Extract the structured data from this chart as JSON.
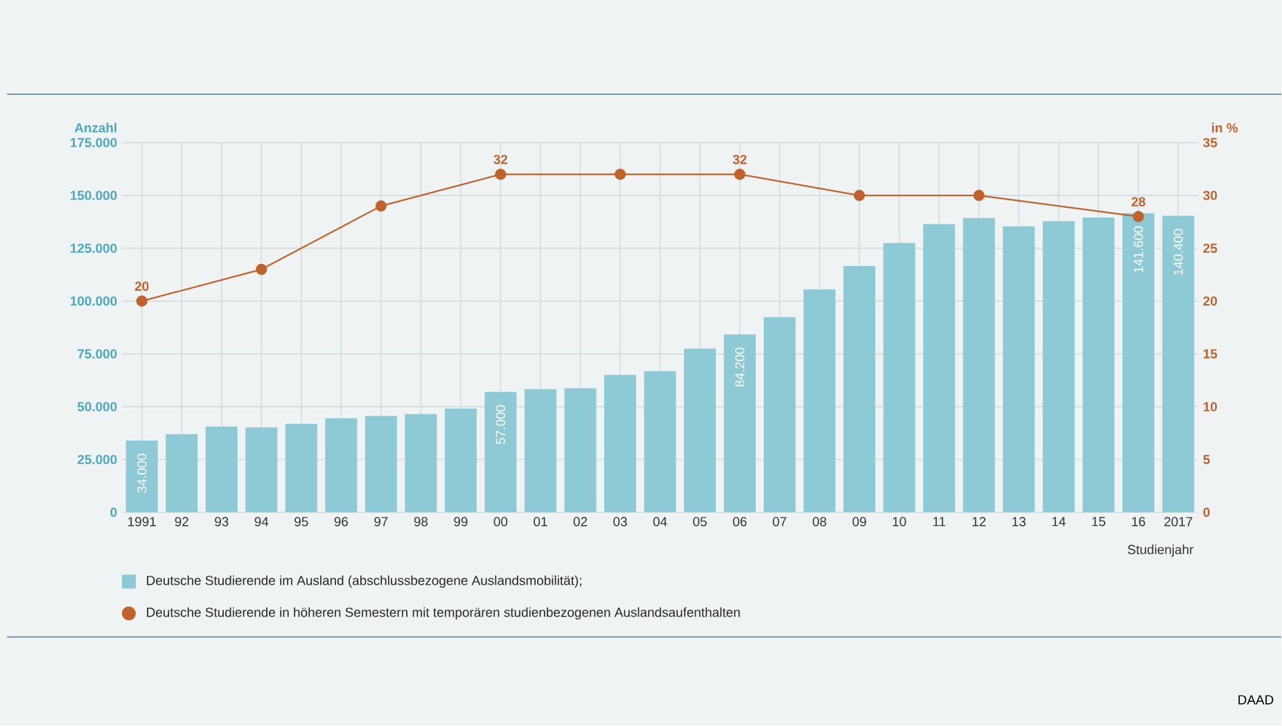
{
  "chart_data": {
    "type": "bar",
    "ylabel": "Anzahl",
    "y2label": "in %",
    "xlabel": "Studienjahr",
    "categories": [
      "1991",
      "92",
      "93",
      "94",
      "95",
      "96",
      "97",
      "98",
      "99",
      "00",
      "01",
      "02",
      "03",
      "04",
      "05",
      "06",
      "07",
      "08",
      "09",
      "10",
      "11",
      "12",
      "13",
      "14",
      "15",
      "16",
      "2017"
    ],
    "series": [
      {
        "name": "Deutsche Studierende im Ausland (abschlussbezogene Auslandsmobilität);",
        "color": "#8ec9d6",
        "values": [
          34000,
          37000,
          40600,
          40200,
          41900,
          44500,
          45600,
          46500,
          49100,
          57000,
          58300,
          58700,
          65000,
          66800,
          77500,
          84200,
          92400,
          105500,
          116600,
          127500,
          136400,
          139300,
          135400,
          137800,
          139500,
          141600,
          140400
        ],
        "value_labels": [
          "34.000",
          null,
          null,
          null,
          null,
          null,
          null,
          null,
          null,
          "57.000",
          null,
          null,
          null,
          null,
          null,
          "84.200",
          null,
          null,
          null,
          null,
          null,
          null,
          null,
          null,
          null,
          "141.600",
          "140.400"
        ]
      },
      {
        "name": "Deutsche Studierende in höheren Semestern mit temporären studienbezogenen Auslandsaufenthalten",
        "type": "line",
        "axis": "y2",
        "color": "#c0622b",
        "values": [
          20,
          null,
          null,
          23,
          null,
          null,
          29,
          null,
          null,
          32,
          null,
          null,
          32,
          null,
          null,
          32,
          null,
          null,
          30,
          null,
          null,
          30,
          null,
          null,
          null,
          28,
          null
        ],
        "value_labels": [
          "20",
          null,
          null,
          null,
          null,
          null,
          null,
          null,
          null,
          "32",
          null,
          null,
          null,
          null,
          null,
          "32",
          null,
          null,
          null,
          null,
          null,
          null,
          null,
          null,
          null,
          "28",
          null
        ]
      }
    ],
    "ylim": [
      0,
      175000
    ],
    "yticks": [
      0,
      {
        "value": 25000,
        "label": "25.000"
      },
      {
        "value": 50000,
        "label": "50.000"
      },
      {
        "value": 75000,
        "label": "75.000"
      },
      {
        "value": 100000,
        "label": "100.000"
      },
      {
        "value": 125000,
        "label": "125.000"
      },
      {
        "value": 150000,
        "label": "150.000"
      },
      {
        "value": 175000,
        "label": "175.000"
      }
    ],
    "y2lim": [
      0,
      35
    ],
    "y2ticks": [
      0,
      5,
      10,
      15,
      20,
      25,
      30,
      35
    ],
    "grid": true,
    "legend": "bottom",
    "marker": "circle",
    "annotations": [
      "DAAD"
    ]
  }
}
